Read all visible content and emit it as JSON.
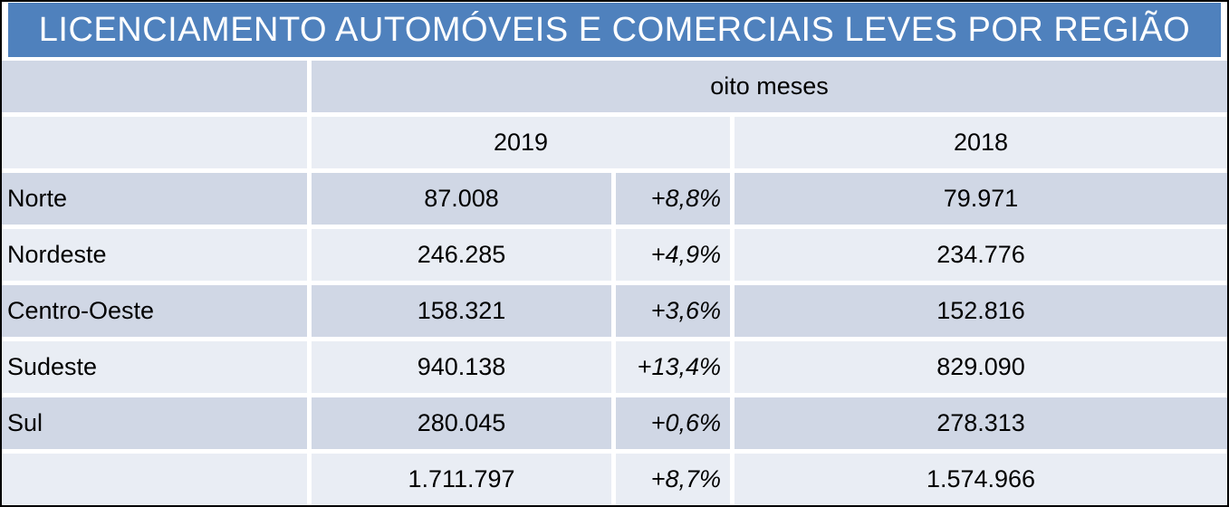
{
  "chart_data": {
    "type": "table",
    "title": "LICENCIAMENTO AUTOMÓVEIS E COMERCIAIS LEVES POR REGIÃO",
    "group_header": "oito meses",
    "year_headers": {
      "y2019": "2019",
      "y2018": "2018"
    },
    "rows": [
      {
        "region": "Norte",
        "value_2019": "87.008",
        "pct_change": "+8,8%",
        "value_2018": "79.971"
      },
      {
        "region": "Nordeste",
        "value_2019": "246.285",
        "pct_change": "+4,9%",
        "value_2018": "234.776"
      },
      {
        "region": "Centro-Oeste",
        "value_2019": "158.321",
        "pct_change": "+3,6%",
        "value_2018": "152.816"
      },
      {
        "region": "Sudeste",
        "value_2019": "940.138",
        "pct_change": "+13,4%",
        "value_2018": "829.090"
      },
      {
        "region": "Sul",
        "value_2019": "280.045",
        "pct_change": "+0,6%",
        "value_2018": "278.313"
      }
    ],
    "total": {
      "value_2019": "1.711.797",
      "pct_change": "+8,7%",
      "value_2018": "1.574.966"
    },
    "layout_hints": {
      "banding": "alternating dark/light lavender rows",
      "pct_column_style": "italic, right-aligned",
      "value_alignment": "center"
    }
  },
  "colors": {
    "header_blue": "#4F81BD",
    "band_dark": "#D0D7E5",
    "band_light": "#E9EDF4",
    "title_text": "#FFFFFF",
    "body_text": "#000000",
    "outer_border": "#000000",
    "grid_gap": "#FFFFFF"
  }
}
